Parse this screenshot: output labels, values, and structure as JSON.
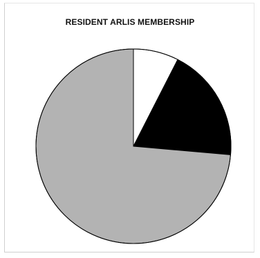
{
  "chart_data": {
    "type": "pie",
    "title": "RESIDENT ARLIS MEMBERSHIP",
    "legend": "none",
    "data_labels": "none",
    "slices": [
      {
        "value": 7.5,
        "color": "#ffffff"
      },
      {
        "value": 18.9,
        "color": "#000000"
      },
      {
        "value": 73.6,
        "color": "#b3b3b3"
      }
    ],
    "start_angle_deg": 0,
    "direction": "clockwise"
  }
}
